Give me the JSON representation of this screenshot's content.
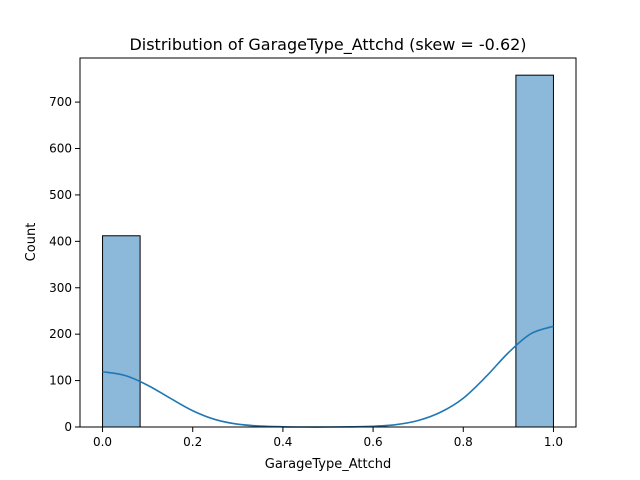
{
  "chart_data": {
    "type": "bar",
    "title": "Distribution of GarageType_Attchd (skew = -0.62)",
    "xlabel": "GarageType_Attchd",
    "ylabel": "Count",
    "xlim": [
      -0.05,
      1.05
    ],
    "ylim": [
      0,
      795
    ],
    "x_ticks": [
      {
        "value": 0.0,
        "label": "0.0"
      },
      {
        "value": 0.2,
        "label": "0.2"
      },
      {
        "value": 0.4,
        "label": "0.4"
      },
      {
        "value": 0.6,
        "label": "0.6"
      },
      {
        "value": 0.8,
        "label": "0.8"
      },
      {
        "value": 1.0,
        "label": "1.0"
      }
    ],
    "y_ticks": [
      {
        "value": 0,
        "label": "0"
      },
      {
        "value": 100,
        "label": "100"
      },
      {
        "value": 200,
        "label": "200"
      },
      {
        "value": 300,
        "label": "300"
      },
      {
        "value": 400,
        "label": "400"
      },
      {
        "value": 500,
        "label": "500"
      },
      {
        "value": 600,
        "label": "600"
      },
      {
        "value": 700,
        "label": "700"
      }
    ],
    "bins": [
      {
        "x0": 0.0,
        "x1": 0.0833,
        "count": 412
      },
      {
        "x0": 0.9167,
        "x1": 1.0,
        "count": 758
      }
    ],
    "kde": {
      "name": "KDE",
      "points": [
        [
          0.0,
          119
        ],
        [
          0.05,
          111
        ],
        [
          0.1,
          90
        ],
        [
          0.15,
          62
        ],
        [
          0.2,
          35
        ],
        [
          0.25,
          16
        ],
        [
          0.3,
          6
        ],
        [
          0.35,
          2
        ],
        [
          0.4,
          0.5
        ],
        [
          0.45,
          0
        ],
        [
          0.5,
          0
        ],
        [
          0.55,
          0.3
        ],
        [
          0.6,
          1.5
        ],
        [
          0.65,
          5
        ],
        [
          0.7,
          14
        ],
        [
          0.75,
          32
        ],
        [
          0.8,
          62
        ],
        [
          0.85,
          108
        ],
        [
          0.9,
          160
        ],
        [
          0.95,
          201
        ],
        [
          1.0,
          217
        ]
      ]
    },
    "colors": {
      "bar_fill": "#8cb9da",
      "bar_edge": "#000000",
      "kde_line": "#1f77b4"
    }
  }
}
